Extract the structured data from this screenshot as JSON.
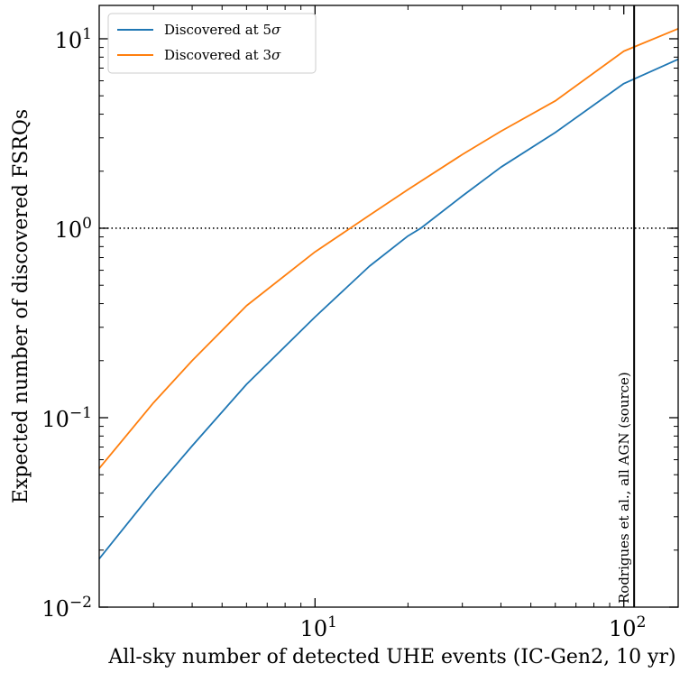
{
  "chart_data": {
    "type": "line",
    "xscale": "log",
    "yscale": "log",
    "xlim": [
      2,
      150
    ],
    "ylim": [
      0.01,
      15
    ],
    "xlabel": "All-sky number of detected UHE events (IC-Gen2, 10 yr)",
    "ylabel": "Expected number of discovered FSRQs",
    "x_ticks": [
      {
        "value": 10,
        "base": "10",
        "exp": "1"
      },
      {
        "value": 100,
        "base": "10",
        "exp": "2"
      }
    ],
    "y_ticks": [
      {
        "value": 0.01,
        "base": "10",
        "exp": "−2"
      },
      {
        "value": 0.1,
        "base": "10",
        "exp": "−1"
      },
      {
        "value": 1,
        "base": "10",
        "exp": "0"
      },
      {
        "value": 10,
        "base": "10",
        "exp": "1"
      }
    ],
    "legend_position": "top-left",
    "series": [
      {
        "name": "Discovered at 5σ",
        "legend_prefix": "Discovered at 5",
        "legend_symbol": "σ",
        "color": "#1f77b4",
        "x": [
          2,
          3,
          4,
          6,
          10,
          15,
          20,
          22,
          30,
          40,
          60,
          100,
          150
        ],
        "y": [
          0.018,
          0.041,
          0.071,
          0.15,
          0.34,
          0.63,
          0.91,
          1.0,
          1.48,
          2.1,
          3.2,
          5.8,
          7.8
        ]
      },
      {
        "name": "Discovered at 3σ",
        "legend_prefix": "Discovered at 3",
        "legend_symbol": "σ",
        "color": "#ff7f0e",
        "x": [
          2,
          3,
          4,
          6,
          10,
          13,
          15,
          20,
          30,
          40,
          60,
          100,
          150
        ],
        "y": [
          0.054,
          0.12,
          0.2,
          0.39,
          0.75,
          1.0,
          1.17,
          1.6,
          2.45,
          3.25,
          4.7,
          8.6,
          11.3
        ]
      }
    ],
    "hline": {
      "y": 1,
      "style": "dotted",
      "color": "#000000"
    },
    "vline": {
      "x": 108,
      "color": "#000000",
      "label": "Rodrigues et al., all AGN (source)"
    }
  }
}
